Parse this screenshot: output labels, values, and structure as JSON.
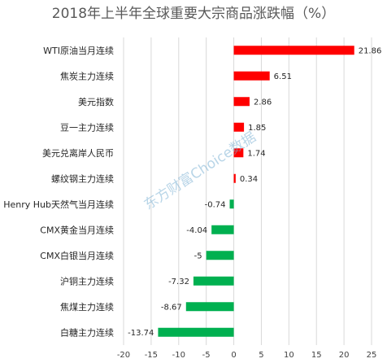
{
  "chart_data": {
    "type": "bar",
    "orientation": "horizontal",
    "title": "2018年上半年全球重要大宗商品涨跌幅（%）",
    "categories": [
      "WTI原油当月连续",
      "焦炭主力连续",
      "美元指数",
      "豆一主力连续",
      "美元兑离岸人民币",
      "螺纹钢主力连续",
      "Henry Hub天然气当月连续",
      "CMX黄金当月连续",
      "CMX白银当月连续",
      "沪铜主力连续",
      "焦煤主力连续",
      "白糖主力连续"
    ],
    "values": [
      21.86,
      6.51,
      2.86,
      1.85,
      1.74,
      0.34,
      -0.74,
      -4.04,
      -5,
      -7.32,
      -8.67,
      -13.74
    ],
    "value_labels": [
      "21.86",
      "6.51",
      "2.86",
      "1.85",
      "1.74",
      "0.34",
      "-0.74",
      "-4.04",
      "-5",
      "-7.32",
      "-8.67",
      "-13.74"
    ],
    "xlim": [
      -20,
      25
    ],
    "xticks": [
      "-20",
      "-15",
      "-10",
      "-5",
      "0",
      "5",
      "10",
      "15",
      "20",
      "25"
    ],
    "grid": "vertical",
    "colors": {
      "positive": "#ff0000",
      "negative": "#00b050"
    },
    "watermark": "东方财富Choice数据"
  }
}
